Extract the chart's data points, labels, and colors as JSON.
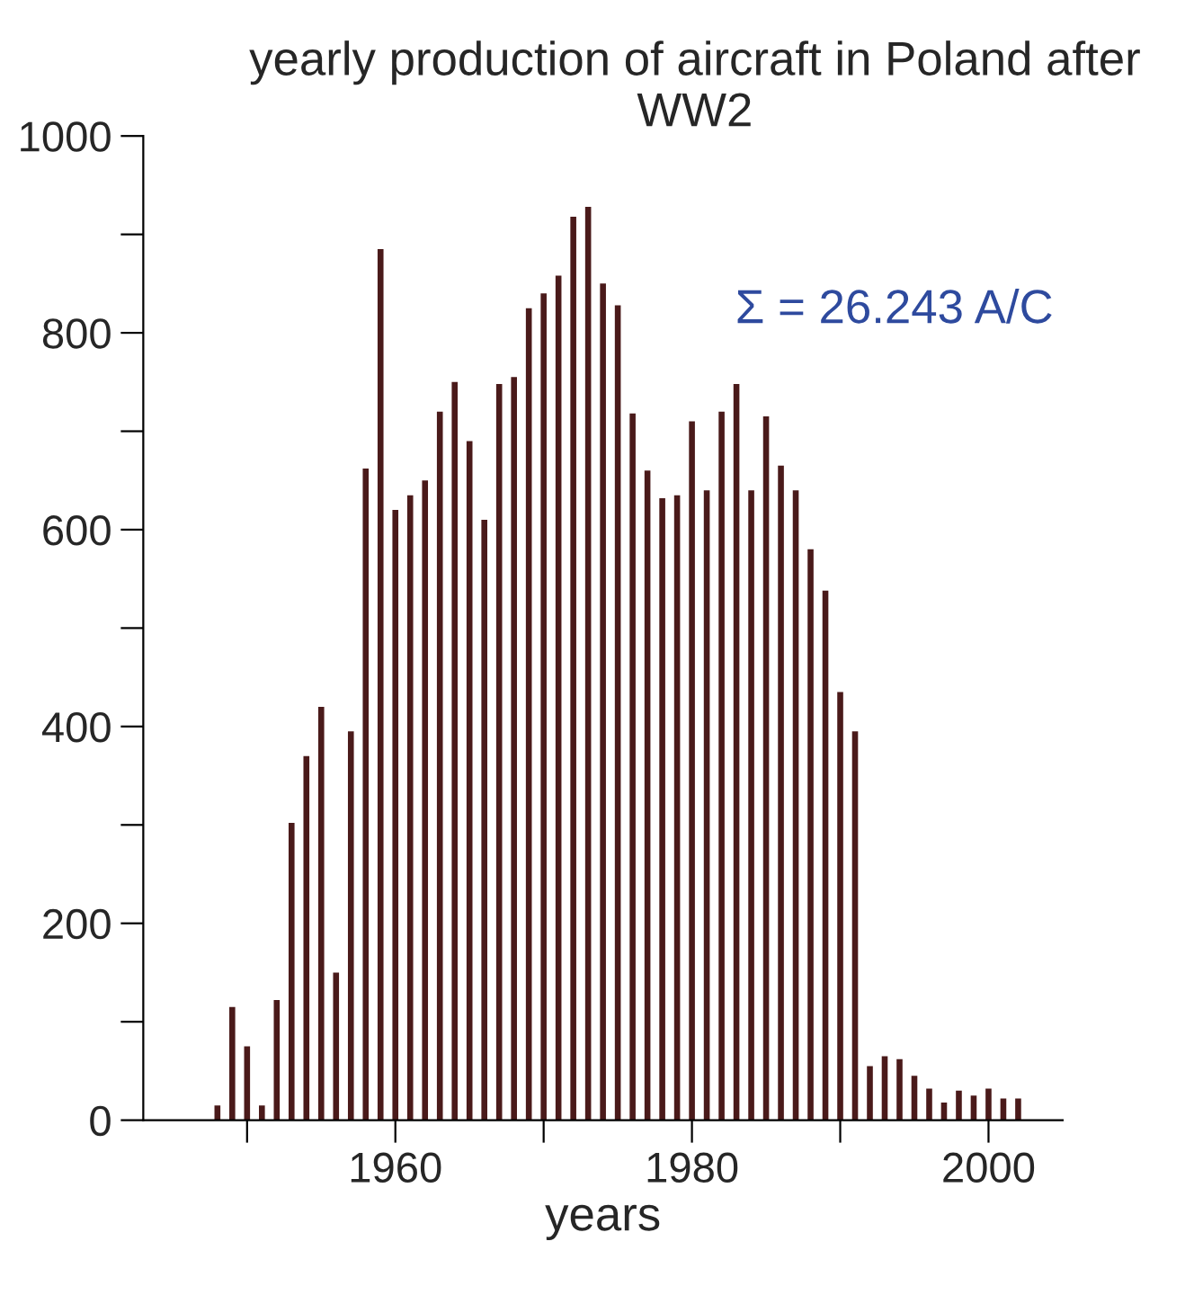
{
  "chart_data": {
    "type": "bar",
    "title": "yearly production of aircraft in Poland after WW2",
    "xlabel": "years",
    "annotations": [
      "Σ = 26.243 A/C"
    ],
    "x": [
      1948,
      1949,
      1950,
      1951,
      1952,
      1953,
      1954,
      1955,
      1956,
      1957,
      1958,
      1959,
      1960,
      1961,
      1962,
      1963,
      1964,
      1965,
      1966,
      1967,
      1968,
      1969,
      1970,
      1971,
      1972,
      1973,
      1974,
      1975,
      1976,
      1977,
      1978,
      1979,
      1980,
      1981,
      1982,
      1983,
      1984,
      1985,
      1986,
      1987,
      1988,
      1989,
      1990,
      1991,
      1992,
      1993,
      1994,
      1995,
      1996,
      1997,
      1998,
      1999,
      2000,
      2001,
      2002
    ],
    "values": [
      15,
      115,
      75,
      15,
      122,
      302,
      370,
      420,
      150,
      395,
      662,
      885,
      620,
      635,
      650,
      720,
      750,
      690,
      610,
      748,
      755,
      825,
      840,
      858,
      918,
      928,
      850,
      828,
      718,
      660,
      632,
      635,
      710,
      640,
      720,
      748,
      640,
      715,
      665,
      640,
      580,
      538,
      435,
      395,
      55,
      65,
      62,
      45,
      32,
      18,
      30,
      25,
      32,
      22,
      22
    ],
    "color": "#4a1a1a",
    "xlim": [
      1943,
      2005
    ],
    "xticks": [
      {
        "value": 1950,
        "label": null
      },
      1960,
      {
        "value": 1970,
        "label": null
      },
      1980,
      {
        "value": 1990,
        "label": null
      },
      2000
    ],
    "ylim": [
      0,
      1000
    ],
    "yticks": [
      0,
      {
        "value": 100,
        "label": null
      },
      200,
      {
        "value": 300,
        "label": null
      },
      400,
      {
        "value": 500,
        "label": null
      },
      600,
      {
        "value": 700,
        "label": null
      },
      800,
      {
        "value": 900,
        "label": null
      },
      1000
    ],
    "grid": false,
    "legend": false
  }
}
